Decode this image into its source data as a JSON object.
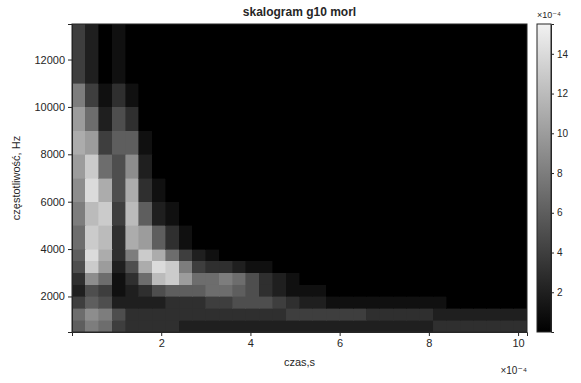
{
  "chart_data": {
    "type": "heatmap",
    "title": "skalogram g10 morl",
    "xlabel": "czas,s",
    "ylabel": "częstotliwość, Hz",
    "x_multiplier": "×10⁻⁴",
    "xlim": [
      0,
      10.2
    ],
    "xticks": [
      2,
      4,
      6,
      8,
      10
    ],
    "ylim": [
      500,
      13500
    ],
    "yticks": [
      2000,
      4000,
      6000,
      8000,
      10000,
      12000
    ],
    "x_edges": [
      0,
      0.3,
      0.6,
      0.9,
      1.2,
      1.5,
      1.8,
      2.1,
      2.4,
      2.7,
      3,
      3.3,
      3.6,
      3.9,
      4.2,
      4.5,
      4.8,
      5.1,
      5.4,
      5.7,
      6,
      6.3,
      6.6,
      6.9,
      7.2,
      7.5,
      7.8,
      8.1,
      8.4,
      8.7,
      9,
      9.3,
      9.6,
      9.9,
      10.2
    ],
    "y_edges": [
      500,
      1000,
      1500,
      2000,
      2500,
      3000,
      3500,
      4000,
      5000,
      6000,
      7000,
      8000,
      9000,
      10000,
      11000,
      13500
    ],
    "z": [
      [
        6,
        8,
        7,
        4,
        3,
        3,
        3,
        3,
        2,
        2,
        2,
        2,
        2,
        2,
        2,
        2,
        2,
        2,
        2,
        2,
        2,
        2,
        2,
        2,
        2,
        2,
        2,
        3,
        3,
        3,
        3,
        3,
        3,
        3
      ],
      [
        7,
        9,
        8,
        5,
        3,
        3,
        3,
        3,
        3,
        3,
        3,
        3,
        3,
        3,
        3,
        3,
        4,
        4,
        4,
        4,
        4,
        4,
        3,
        3,
        3,
        3,
        3,
        2,
        2,
        2,
        2,
        2,
        2,
        2
      ],
      [
        4,
        6,
        5,
        2,
        2,
        2,
        2,
        3,
        3,
        3,
        4,
        4,
        5,
        5,
        5,
        4,
        3,
        2,
        2,
        1,
        1,
        1,
        1,
        1,
        1,
        1,
        1,
        1,
        0,
        0,
        0,
        0,
        0,
        0
      ],
      [
        2,
        5,
        4,
        1,
        2,
        3,
        5,
        6,
        6,
        6,
        7,
        7,
        6,
        5,
        3,
        2,
        1,
        1,
        1,
        0,
        0,
        0,
        0,
        0,
        0,
        0,
        0,
        0,
        0,
        0,
        0,
        0,
        0,
        0
      ],
      [
        3,
        9,
        7,
        1,
        3,
        7,
        12,
        13,
        10,
        7,
        7,
        8,
        7,
        5,
        3,
        2,
        1,
        0,
        0,
        0,
        0,
        0,
        0,
        0,
        0,
        0,
        0,
        0,
        0,
        0,
        0,
        0,
        0,
        0
      ],
      [
        5,
        13,
        10,
        2,
        5,
        11,
        14,
        13,
        8,
        4,
        3,
        3,
        2,
        1,
        1,
        0,
        0,
        0,
        0,
        0,
        0,
        0,
        0,
        0,
        0,
        0,
        0,
        0,
        0,
        0,
        0,
        0,
        0,
        0
      ],
      [
        6,
        14,
        11,
        3,
        8,
        13,
        11,
        7,
        4,
        2,
        1,
        0,
        0,
        0,
        0,
        0,
        0,
        0,
        0,
        0,
        0,
        0,
        0,
        0,
        0,
        0,
        0,
        0,
        0,
        0,
        0,
        0,
        0,
        0
      ],
      [
        7,
        13,
        12,
        3,
        11,
        10,
        6,
        3,
        1,
        0,
        0,
        0,
        0,
        0,
        0,
        0,
        0,
        0,
        0,
        0,
        0,
        0,
        0,
        0,
        0,
        0,
        0,
        0,
        0,
        0,
        0,
        0,
        0,
        0
      ],
      [
        8,
        12,
        13,
        4,
        12,
        6,
        2,
        1,
        0,
        0,
        0,
        0,
        0,
        0,
        0,
        0,
        0,
        0,
        0,
        0,
        0,
        0,
        0,
        0,
        0,
        0,
        0,
        0,
        0,
        0,
        0,
        0,
        0,
        0
      ],
      [
        9,
        14,
        11,
        5,
        11,
        3,
        1,
        0,
        0,
        0,
        0,
        0,
        0,
        0,
        0,
        0,
        0,
        0,
        0,
        0,
        0,
        0,
        0,
        0,
        0,
        0,
        0,
        0,
        0,
        0,
        0,
        0,
        0,
        0
      ],
      [
        10,
        13,
        7,
        5,
        9,
        2,
        0,
        0,
        0,
        0,
        0,
        0,
        0,
        0,
        0,
        0,
        0,
        0,
        0,
        0,
        0,
        0,
        0,
        0,
        0,
        0,
        0,
        0,
        0,
        0,
        0,
        0,
        0,
        0
      ],
      [
        11,
        10,
        4,
        6,
        6,
        1,
        0,
        0,
        0,
        0,
        0,
        0,
        0,
        0,
        0,
        0,
        0,
        0,
        0,
        0,
        0,
        0,
        0,
        0,
        0,
        0,
        0,
        0,
        0,
        0,
        0,
        0,
        0,
        0
      ],
      [
        10,
        7,
        2,
        5,
        3,
        0,
        0,
        0,
        0,
        0,
        0,
        0,
        0,
        0,
        0,
        0,
        0,
        0,
        0,
        0,
        0,
        0,
        0,
        0,
        0,
        0,
        0,
        0,
        0,
        0,
        0,
        0,
        0,
        0
      ],
      [
        8,
        4,
        1,
        3,
        1,
        0,
        0,
        0,
        0,
        0,
        0,
        0,
        0,
        0,
        0,
        0,
        0,
        0,
        0,
        0,
        0,
        0,
        0,
        0,
        0,
        0,
        0,
        0,
        0,
        0,
        0,
        0,
        0,
        0
      ],
      [
        4,
        2,
        0,
        1,
        0,
        0,
        0,
        0,
        0,
        0,
        0,
        0,
        0,
        0,
        0,
        0,
        0,
        0,
        0,
        0,
        0,
        0,
        0,
        0,
        0,
        0,
        0,
        0,
        0,
        0,
        0,
        0,
        0,
        0
      ]
    ],
    "colorbar": {
      "range": [
        0,
        15.5
      ],
      "ticks": [
        2,
        4,
        6,
        8,
        10,
        12,
        14
      ],
      "multiplier": "×10⁻⁴"
    }
  }
}
